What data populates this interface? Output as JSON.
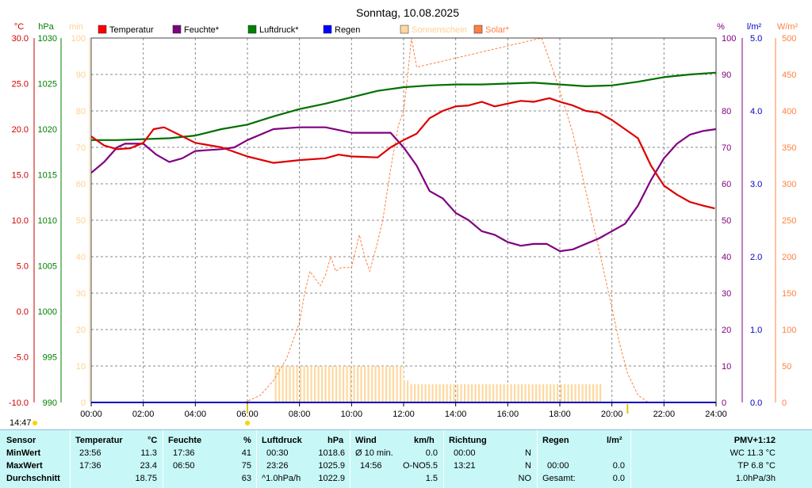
{
  "chart_data": {
    "type": "line",
    "title": "Sonntag, 10.08.2025",
    "x_ticks": [
      "00:00",
      "02:00",
      "04:00",
      "06:00",
      "08:00",
      "10:00",
      "12:00",
      "14:00",
      "16:00",
      "18:00",
      "20:00",
      "22:00",
      "24:00"
    ],
    "xlim_hours": [
      0,
      24
    ],
    "grid": true,
    "axes": {
      "temp": {
        "unit": "°C",
        "range": [
          -10,
          30
        ],
        "ticks": [
          "-10.0",
          "-5.0",
          "0.0",
          "5.0",
          "10.0",
          "15.0",
          "20.0",
          "25.0",
          "30.0"
        ],
        "color": "#d00000"
      },
      "pressure": {
        "unit": "hPa",
        "range": [
          990,
          1030
        ],
        "ticks": [
          "990",
          "995",
          "1000",
          "1005",
          "1010",
          "1015",
          "1020",
          "1025",
          "1030"
        ],
        "color": "#008000"
      },
      "minutes": {
        "unit": "min",
        "range": [
          0,
          100
        ],
        "ticks": [
          "0",
          "10",
          "20",
          "30",
          "40",
          "50",
          "60",
          "70",
          "80",
          "90",
          "100"
        ],
        "color": "#ffd090"
      },
      "humidity": {
        "unit": "%",
        "range": [
          0,
          100
        ],
        "ticks": [
          "0",
          "10",
          "20",
          "30",
          "40",
          "50",
          "60",
          "70",
          "80",
          "90",
          "100"
        ],
        "color": "#800080"
      },
      "rain": {
        "unit": "l/m²",
        "range": [
          0,
          5
        ],
        "ticks": [
          "0.0",
          "1.0",
          "2.0",
          "3.0",
          "4.0",
          "5.0"
        ],
        "color": "#0000c0"
      },
      "solar": {
        "unit": "W/m²",
        "range": [
          0,
          500
        ],
        "ticks": [
          "0",
          "50",
          "100",
          "150",
          "200",
          "250",
          "300",
          "350",
          "400",
          "450",
          "500"
        ],
        "color": "#ff8040"
      }
    },
    "legend": [
      {
        "name": "Temperatur",
        "color": "#ff0000"
      },
      {
        "name": "Feuchte*",
        "color": "#800080"
      },
      {
        "name": "Luftdruck*",
        "color": "#008000"
      },
      {
        "name": "Regen",
        "color": "#0000ff"
      },
      {
        "name": "Sonnenschein",
        "color": "#ffd8a0"
      },
      {
        "name": "Solar*",
        "color": "#ff8040"
      }
    ],
    "series": [
      {
        "name": "Temperatur",
        "axis": "temp",
        "color": "#dd0000",
        "points": [
          [
            0,
            19.2
          ],
          [
            0.5,
            18.2
          ],
          [
            1,
            17.8
          ],
          [
            1.5,
            17.9
          ],
          [
            2,
            18.5
          ],
          [
            2.4,
            20.0
          ],
          [
            2.8,
            20.2
          ],
          [
            3.3,
            19.5
          ],
          [
            4,
            18.5
          ],
          [
            5,
            18.0
          ],
          [
            6,
            17.0
          ],
          [
            7,
            16.3
          ],
          [
            8,
            16.6
          ],
          [
            9,
            16.8
          ],
          [
            9.5,
            17.2
          ],
          [
            10,
            17.0
          ],
          [
            11,
            16.9
          ],
          [
            11.5,
            18.0
          ],
          [
            12,
            18.8
          ],
          [
            12.5,
            19.5
          ],
          [
            13,
            21.2
          ],
          [
            13.5,
            22.0
          ],
          [
            14,
            22.5
          ],
          [
            14.5,
            22.6
          ],
          [
            15,
            23.0
          ],
          [
            15.5,
            22.5
          ],
          [
            16,
            22.8
          ],
          [
            16.5,
            23.1
          ],
          [
            17,
            23.0
          ],
          [
            17.6,
            23.4
          ],
          [
            18,
            23.0
          ],
          [
            18.5,
            22.6
          ],
          [
            19,
            22.0
          ],
          [
            19.5,
            21.8
          ],
          [
            20,
            21.0
          ],
          [
            20.5,
            20.0
          ],
          [
            21,
            19.0
          ],
          [
            21.5,
            16.0
          ],
          [
            22,
            13.8
          ],
          [
            22.5,
            12.8
          ],
          [
            23,
            12.0
          ],
          [
            23.5,
            11.6
          ],
          [
            23.95,
            11.3
          ]
        ]
      },
      {
        "name": "Feuchte",
        "axis": "humidity",
        "color": "#800080",
        "points": [
          [
            0,
            63
          ],
          [
            0.5,
            66
          ],
          [
            1,
            70
          ],
          [
            1.3,
            71
          ],
          [
            2,
            71
          ],
          [
            2.5,
            68
          ],
          [
            3,
            66
          ],
          [
            3.5,
            67
          ],
          [
            4,
            69
          ],
          [
            5,
            69.5
          ],
          [
            5.5,
            70
          ],
          [
            6,
            72
          ],
          [
            7,
            75
          ],
          [
            8,
            75.5
          ],
          [
            9,
            75.5
          ],
          [
            10,
            74
          ],
          [
            11,
            74
          ],
          [
            11.5,
            74
          ],
          [
            12,
            70
          ],
          [
            12.5,
            65
          ],
          [
            13,
            58
          ],
          [
            13.5,
            56
          ],
          [
            14,
            52
          ],
          [
            14.5,
            50
          ],
          [
            15,
            47
          ],
          [
            15.5,
            46
          ],
          [
            16,
            44
          ],
          [
            16.5,
            43
          ],
          [
            17,
            43.5
          ],
          [
            17.5,
            43.5
          ],
          [
            18,
            41.5
          ],
          [
            18.5,
            42
          ],
          [
            19,
            43.5
          ],
          [
            19.5,
            45
          ],
          [
            20,
            47
          ],
          [
            20.5,
            49
          ],
          [
            21,
            54
          ],
          [
            21.5,
            61
          ],
          [
            22,
            67
          ],
          [
            22.5,
            71
          ],
          [
            23,
            73.5
          ],
          [
            23.5,
            74.5
          ],
          [
            24,
            75
          ]
        ]
      },
      {
        "name": "Luftdruck",
        "axis": "pressure",
        "color": "#007000",
        "points": [
          [
            0,
            1018.8
          ],
          [
            1,
            1018.8
          ],
          [
            2,
            1018.9
          ],
          [
            3,
            1019.0
          ],
          [
            4,
            1019.3
          ],
          [
            5,
            1020.0
          ],
          [
            6,
            1020.5
          ],
          [
            7,
            1021.4
          ],
          [
            8,
            1022.2
          ],
          [
            9,
            1022.8
          ],
          [
            10,
            1023.5
          ],
          [
            11,
            1024.2
          ],
          [
            12,
            1024.6
          ],
          [
            13,
            1024.8
          ],
          [
            14,
            1024.9
          ],
          [
            15,
            1024.9
          ],
          [
            16,
            1025.0
          ],
          [
            17,
            1025.1
          ],
          [
            18,
            1024.9
          ],
          [
            19,
            1024.7
          ],
          [
            20,
            1024.8
          ],
          [
            21,
            1025.2
          ],
          [
            22,
            1025.7
          ],
          [
            23,
            1026.0
          ],
          [
            24,
            1026.2
          ]
        ]
      },
      {
        "name": "Solar",
        "axis": "solar",
        "color": "#ff8040",
        "points": [
          [
            5.9,
            0
          ],
          [
            6.5,
            10
          ],
          [
            7,
            30
          ],
          [
            7.5,
            60
          ],
          [
            8,
            110
          ],
          [
            8.2,
            150
          ],
          [
            8.4,
            180
          ],
          [
            8.6,
            170
          ],
          [
            8.8,
            160
          ],
          [
            9.0,
            175
          ],
          [
            9.2,
            200
          ],
          [
            9.4,
            180
          ],
          [
            9.6,
            185
          ],
          [
            9.8,
            185
          ],
          [
            10.0,
            185
          ],
          [
            10.3,
            230
          ],
          [
            10.5,
            200
          ],
          [
            10.7,
            180
          ],
          [
            11.0,
            220
          ],
          [
            11.2,
            250
          ],
          [
            11.5,
            320
          ],
          [
            11.8,
            380
          ],
          [
            12.0,
            400
          ],
          [
            12.1,
            430
          ],
          [
            12.3,
            500
          ],
          [
            12.5,
            460
          ],
          [
            17.3,
            500
          ],
          [
            17.8,
            450
          ],
          [
            18.5,
            370
          ],
          [
            19.0,
            290
          ],
          [
            19.5,
            210
          ],
          [
            20.0,
            130
          ],
          [
            20.3,
            80
          ],
          [
            20.6,
            40
          ],
          [
            21.0,
            10
          ],
          [
            21.4,
            0
          ]
        ]
      }
    ],
    "sunshine_bars": {
      "axis": "minutes",
      "color": "#ffd8a0",
      "segments": [
        {
          "from": 7.0,
          "to": 12.0,
          "value": 10
        },
        {
          "from": 12.0,
          "to": 12.2,
          "value": 6
        },
        {
          "from": 12.2,
          "to": 19.6,
          "value": 5
        }
      ]
    },
    "markers": {
      "now_time": "14:47",
      "sunrise_hour": 6.0,
      "sunset_hour": 20.6
    }
  },
  "stats": {
    "row_labels": [
      "Sensor",
      "MinWert",
      "MaxWert",
      "Durchschnitt"
    ],
    "temperature": {
      "header": "Temperatur",
      "unit": "°C",
      "min_time": "23:56",
      "min": "11.3",
      "max_time": "17:36",
      "max": "23.4",
      "avg": "18.75"
    },
    "humidity": {
      "header": "Feuchte",
      "unit": "%",
      "min_time": "17:36",
      "min": "41",
      "max_time": "06:50",
      "max": "75",
      "avg": "63"
    },
    "pressure": {
      "header": "Luftdruck",
      "unit": "hPa",
      "min_time": "00:30",
      "min": "1018.6",
      "max_time": "23:26",
      "max": "1025.9",
      "trend": "^1.0hPa/h",
      "avg": "1022.9"
    },
    "wind": {
      "header": "Wind",
      "unit": "km/h",
      "label_10min": "Ø 10 min.",
      "val_10min": "0.0",
      "max_time": "14:56",
      "max_dir": "O-NO",
      "max": "5.5",
      "avg": "1.5"
    },
    "direction": {
      "header": "Richtung",
      "min_time": "00:00",
      "min_dir": "N",
      "max_time": "13:21",
      "max_dir": "N",
      "avg_dir": "NO"
    },
    "rain": {
      "header": "Regen",
      "unit": "l/m²",
      "max_time": "00:00",
      "max": "0.0",
      "total_label": "Gesamt:",
      "total": "0.0"
    },
    "pmv": {
      "header": "PMV+1:12",
      "wc": "WC 11.3 °C",
      "tp": "TP 6.8 °C",
      "trend": "1.0hPa/3h"
    }
  }
}
